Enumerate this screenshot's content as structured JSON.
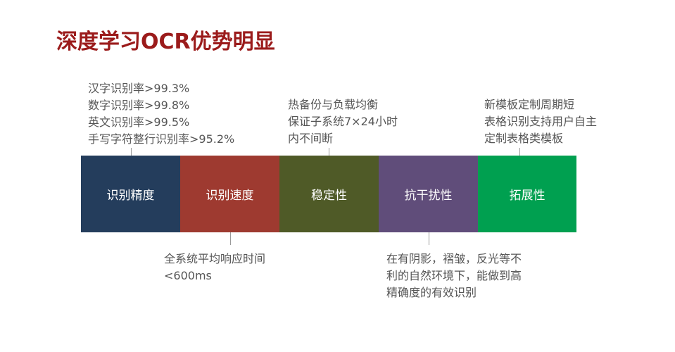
{
  "title": "深度学习OCR优势明显",
  "segments": [
    {
      "label": "识别精度",
      "color": "#243d5c"
    },
    {
      "label": "识别速度",
      "color": "#9e3a30"
    },
    {
      "label": "稳定性",
      "color": "#4f5a27"
    },
    {
      "label": "抗干扰性",
      "color": "#604d7a"
    },
    {
      "label": "拓展性",
      "color": "#00a050"
    }
  ],
  "notes": {
    "accuracy": [
      "汉字识别率>99.3%",
      "数字识别率>99.8%",
      "英文识别率>99.5%",
      "手写字符整行识别率>95.2%"
    ],
    "speed": [
      "全系统平均响应时间",
      "<600ms"
    ],
    "stability": [
      "热备份与负载均衡",
      "保证子系统7×24小时",
      "内不间断"
    ],
    "anti_interference": [
      "在有阴影，褶皱，反光等不",
      "利的自然环境下，能做到高",
      "精确度的有效识别"
    ],
    "extensibility": [
      "新模板定制周期短",
      "表格识别支持用户自主",
      "定制表格类模板"
    ]
  }
}
